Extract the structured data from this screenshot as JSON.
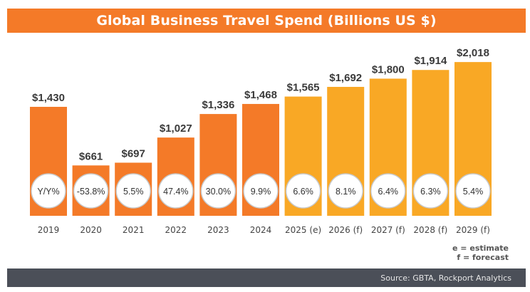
{
  "header": {
    "title": "Global Business Travel Spend (Billions US $)"
  },
  "colors": {
    "actual": "#f47a28",
    "projected": "#f9a825",
    "circle_border": "#c8c8c8"
  },
  "legend": {
    "estimate": "e = estimate",
    "forecast": "f = forecast"
  },
  "footer": {
    "source": "Source: GBTA, Rockport Analytics"
  },
  "chart_data": {
    "type": "bar",
    "title": "Global Business Travel Spend (Billions US $)",
    "categories": [
      "2019",
      "2020",
      "2021",
      "2022",
      "2023",
      "2024",
      "2025 (e)",
      "2026 (f)",
      "2027 (f)",
      "2028 (f)",
      "2029 (f)"
    ],
    "values": [
      1430,
      661,
      697,
      1027,
      1336,
      1468,
      1565,
      1692,
      1800,
      1914,
      2018
    ],
    "value_labels": [
      "$1,430",
      "$661",
      "$697",
      "$1,027",
      "$1,336",
      "$1,468",
      "$1,565",
      "$1,692",
      "$1,800",
      "$1,914",
      "$2,018"
    ],
    "yoy_labels": [
      "Y/Y%",
      "-53.8%",
      "5.5%",
      "47.4%",
      "30.0%",
      "9.9%",
      "6.6%",
      "8.1%",
      "6.4%",
      "6.3%",
      "5.4%"
    ],
    "projected": [
      false,
      false,
      false,
      false,
      false,
      false,
      true,
      true,
      true,
      true,
      true
    ],
    "xlabel": "",
    "ylabel": "",
    "ylim": [
      0,
      2150
    ],
    "grid": false
  }
}
